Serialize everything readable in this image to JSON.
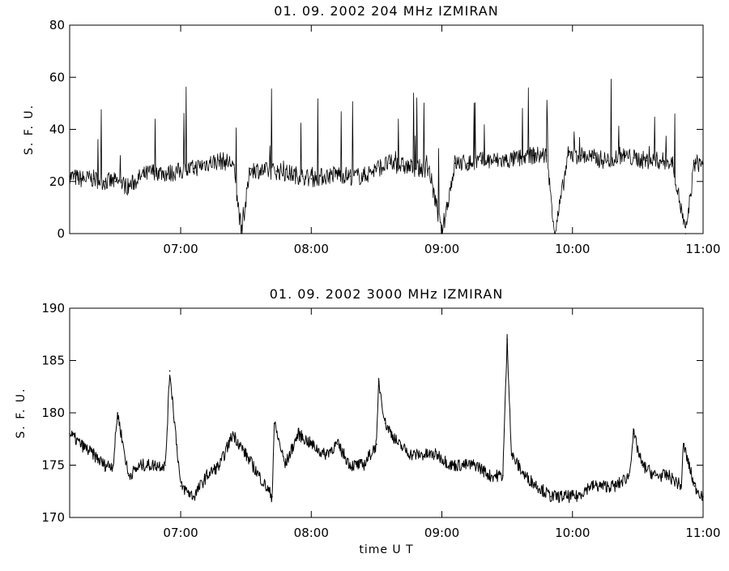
{
  "chart_data": [
    {
      "type": "line",
      "title": "01.  09.  2002    204 MHz    IZMIRAN",
      "ylabel": "S. F. U.",
      "xlabel": "",
      "xlim": [
        "06:09",
        "11:00"
      ],
      "ylim": [
        0,
        80
      ],
      "yticks": [
        0,
        20,
        40,
        60,
        80
      ],
      "xticks": [
        "07:00",
        "08:00",
        "09:00",
        "10:00",
        "11:00"
      ],
      "grid": false,
      "series": [
        {
          "x": [
            "06:09",
            "06:14",
            "06:20",
            "06:25",
            "06:30",
            "06:36",
            "06:42",
            "06:48",
            "06:54",
            "07:00",
            "07:06",
            "07:12",
            "07:18",
            "07:24",
            "07:28",
            "07:32",
            "07:38",
            "07:44",
            "07:50",
            "07:56",
            "08:00",
            "08:06",
            "08:12",
            "08:18",
            "08:24",
            "08:30",
            "08:36",
            "08:42",
            "08:48",
            "08:54",
            "09:00",
            "09:06",
            "09:12",
            "09:18",
            "09:24",
            "09:30",
            "09:36",
            "09:42",
            "09:48",
            "09:52",
            "09:58",
            "10:04",
            "10:10",
            "10:16",
            "10:22",
            "10:28",
            "10:34",
            "10:40",
            "10:46",
            "10:52",
            "10:56",
            "11:00"
          ],
          "values": [
            22,
            21,
            21,
            20,
            20,
            18,
            22,
            24,
            23,
            24,
            25,
            27,
            28,
            27,
            0,
            25,
            24,
            24,
            23,
            22,
            21,
            22,
            23,
            22,
            22,
            25,
            27,
            26,
            25,
            25,
            0,
            27,
            27,
            28,
            28,
            28,
            29,
            30,
            30,
            0,
            30,
            30,
            29,
            28,
            30,
            29,
            28,
            28,
            27,
            0,
            27,
            27
          ]
        }
      ]
    },
    {
      "type": "line",
      "title": "01.  09.  2002    3000  MHz    IZMIRAN",
      "ylabel": "S. F. U.",
      "xlabel": "time   U T",
      "xlim": [
        "06:09",
        "11:00"
      ],
      "ylim": [
        170,
        190
      ],
      "yticks": [
        170,
        175,
        180,
        185,
        190
      ],
      "xticks": [
        "07:00",
        "08:00",
        "09:00",
        "10:00",
        "11:00"
      ],
      "grid": false,
      "series": [
        {
          "x": [
            "06:09",
            "06:14",
            "06:20",
            "06:25",
            "06:29",
            "06:31",
            "06:36",
            "06:42",
            "06:48",
            "06:53",
            "06:55",
            "07:00",
            "07:06",
            "07:12",
            "07:18",
            "07:24",
            "07:30",
            "07:36",
            "07:42",
            "07:43",
            "07:48",
            "07:54",
            "08:00",
            "08:06",
            "08:12",
            "08:18",
            "08:24",
            "08:30",
            "08:31",
            "08:34",
            "08:40",
            "08:46",
            "08:52",
            "08:58",
            "09:04",
            "09:10",
            "09:16",
            "09:22",
            "09:28",
            "09:30",
            "09:32",
            "09:38",
            "09:44",
            "09:50",
            "09:56",
            "10:02",
            "10:08",
            "10:14",
            "10:20",
            "10:26",
            "10:28",
            "10:32",
            "10:38",
            "10:44",
            "10:50",
            "10:51",
            "10:56",
            "11:00"
          ],
          "values": [
            178,
            177,
            176,
            175,
            175,
            180,
            174,
            175,
            175,
            175,
            184,
            173,
            172,
            174,
            175,
            178,
            176,
            174,
            172,
            179,
            175,
            178,
            177,
            176,
            177,
            175,
            175,
            177,
            183,
            179,
            177,
            176,
            176,
            176,
            175,
            175,
            175,
            174,
            174,
            187,
            176,
            174,
            173,
            172,
            172,
            172,
            173,
            173,
            173,
            174,
            178,
            175,
            174,
            174,
            173,
            177,
            173,
            172
          ]
        }
      ]
    }
  ]
}
